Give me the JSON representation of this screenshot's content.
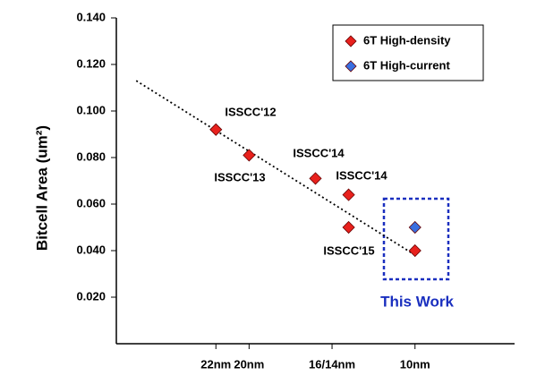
{
  "chart_data": {
    "type": "scatter",
    "y_label": "Bitcell Area (um²)",
    "xlim": [
      28,
      4
    ],
    "ylim": [
      0,
      0.14
    ],
    "xticks": [
      {
        "value": 22,
        "label": "22nm"
      },
      {
        "value": 20,
        "label": "20nm"
      },
      {
        "value": 15,
        "label": "16/14nm"
      },
      {
        "value": 10,
        "label": "10nm"
      }
    ],
    "yticks": [
      {
        "value": 0.02,
        "label": "0.020"
      },
      {
        "value": 0.04,
        "label": "0.040"
      },
      {
        "value": 0.06,
        "label": "0.060"
      },
      {
        "value": 0.08,
        "label": "0.080"
      },
      {
        "value": 0.1,
        "label": "0.100"
      },
      {
        "value": 0.12,
        "label": "0.120"
      },
      {
        "value": 0.14,
        "label": "0.140"
      }
    ],
    "legend": "upper right",
    "series": [
      {
        "name": "6T High-density",
        "color": "#e8211d",
        "x": [
          22,
          20,
          16,
          14,
          14,
          10
        ],
        "values": [
          0.092,
          0.081,
          0.071,
          0.064,
          0.05,
          0.04
        ]
      },
      {
        "name": "6T High-current",
        "color": "#3a6fe0",
        "x": [
          10
        ],
        "values": [
          0.05
        ]
      }
    ],
    "trendline": {
      "x": [
        26.8,
        10.2
      ],
      "values": [
        0.113,
        0.039
      ]
    },
    "annotations": [
      "ISSCC'12",
      "ISSCC'13",
      "ISSCC'14",
      "ISSCC'14",
      "ISSCC'15",
      "This Work"
    ]
  }
}
